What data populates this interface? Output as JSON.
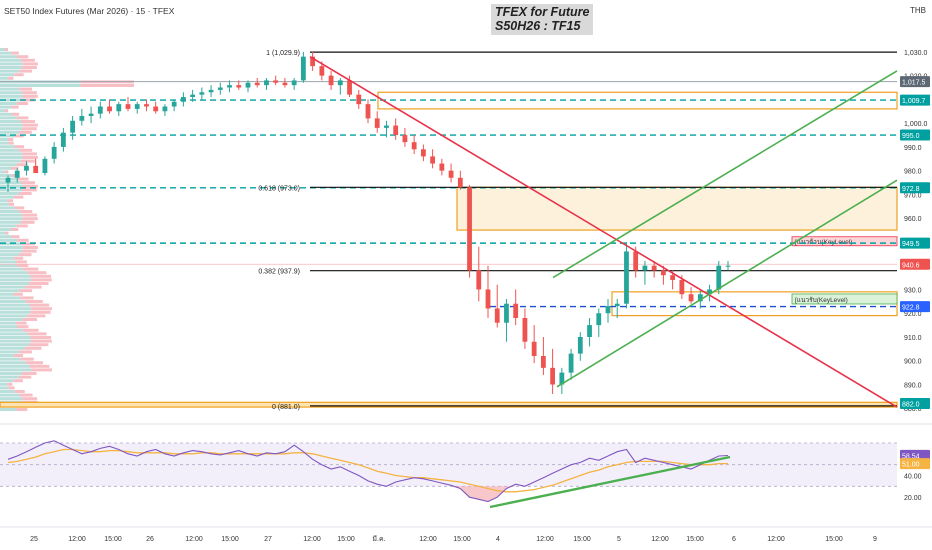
{
  "header": {
    "symbol": "SET50 Index Futures (Mar 2026) · 15 · TFEX",
    "title_line1": "TFEX for Future",
    "title_line2": "S50H26 : TF15",
    "currency": "THB"
  },
  "colors": {
    "up": "#26a69a",
    "down": "#ef5350",
    "teal": "#00a0a0",
    "orange": "#f0a020",
    "red_trend": "#e8314a",
    "green_channel": "#4caf50",
    "black": "#111111",
    "rsi_line": "#7e57c2",
    "rsi_ma": "#f5b342"
  },
  "chart_data": [
    {
      "type": "candlestick",
      "name": "price",
      "y_range": [
        878,
        1035
      ],
      "y_ticks": [
        "1,030.0",
        "1,020.0",
        "1,000.0",
        "990.0",
        "980.0",
        "970.0",
        "960.0",
        "950.0",
        "940.0",
        "930.0",
        "920.0",
        "910.0",
        "900.0",
        "890.0",
        "880.0"
      ],
      "y_tick_values": [
        1030,
        1020,
        1000,
        990,
        980,
        970,
        960,
        950,
        940,
        930,
        920,
        910,
        900,
        890,
        880
      ],
      "x_ticks": [
        "25",
        "12:00",
        "15:00",
        "26",
        "12:00",
        "15:00",
        "27",
        "12:00",
        "15:00",
        "มี.ค.",
        "12:00",
        "15:00",
        "4",
        "12:00",
        "15:00",
        "5",
        "12:00",
        "15:00",
        "6",
        "12:00",
        "15:00",
        "9"
      ],
      "candles": [
        [
          975,
          978,
          971,
          977
        ],
        [
          977,
          981,
          975,
          980
        ],
        [
          980,
          984,
          978,
          982
        ],
        [
          982,
          985,
          979,
          979
        ],
        [
          979,
          986,
          978,
          985
        ],
        [
          985,
          992,
          983,
          990
        ],
        [
          990,
          998,
          988,
          996
        ],
        [
          996,
          1003,
          993,
          1001
        ],
        [
          1001,
          1006,
          999,
          1003
        ],
        [
          1003,
          1007,
          1000,
          1004
        ],
        [
          1004,
          1009,
          1002,
          1007
        ],
        [
          1007,
          1010,
          1004,
          1005
        ],
        [
          1005,
          1009,
          1003,
          1008
        ],
        [
          1008,
          1011,
          1005,
          1006
        ],
        [
          1006,
          1009,
          1004,
          1008
        ],
        [
          1008,
          1010,
          1005,
          1007
        ],
        [
          1007,
          1009,
          1004,
          1005
        ],
        [
          1005,
          1008,
          1003,
          1007
        ],
        [
          1007,
          1010,
          1005,
          1009
        ],
        [
          1009,
          1013,
          1007,
          1011
        ],
        [
          1011,
          1014,
          1009,
          1012
        ],
        [
          1012,
          1015,
          1010,
          1013
        ],
        [
          1013,
          1016,
          1011,
          1014
        ],
        [
          1014,
          1017,
          1012,
          1015
        ],
        [
          1015,
          1018,
          1013,
          1016
        ],
        [
          1016,
          1018,
          1014,
          1015
        ],
        [
          1015,
          1018,
          1013,
          1017
        ],
        [
          1017,
          1019,
          1015,
          1016
        ],
        [
          1016,
          1019,
          1014,
          1018
        ],
        [
          1018,
          1020,
          1016,
          1017
        ],
        [
          1017,
          1019,
          1015,
          1016
        ],
        [
          1016,
          1019,
          1014,
          1018
        ],
        [
          1018,
          1030,
          1017,
          1028
        ],
        [
          1028,
          1030,
          1022,
          1024
        ],
        [
          1024,
          1026,
          1018,
          1020
        ],
        [
          1020,
          1022,
          1014,
          1016
        ],
        [
          1016,
          1019,
          1012,
          1018
        ],
        [
          1018,
          1020,
          1011,
          1012
        ],
        [
          1012,
          1014,
          1006,
          1008
        ],
        [
          1008,
          1010,
          1000,
          1002
        ],
        [
          1002,
          1005,
          996,
          998
        ],
        [
          998,
          1001,
          994,
          999
        ],
        [
          999,
          1002,
          993,
          995
        ],
        [
          995,
          998,
          990,
          992
        ],
        [
          992,
          995,
          987,
          989
        ],
        [
          989,
          991,
          984,
          986
        ],
        [
          986,
          989,
          981,
          983
        ],
        [
          983,
          985,
          978,
          980
        ],
        [
          980,
          983,
          975,
          977
        ],
        [
          977,
          980,
          972,
          973
        ],
        [
          973,
          974,
          935,
          938
        ],
        [
          938,
          948,
          925,
          930
        ],
        [
          930,
          940,
          918,
          922
        ],
        [
          922,
          932,
          914,
          916
        ],
        [
          916,
          926,
          908,
          924
        ],
        [
          924,
          930,
          915,
          918
        ],
        [
          918,
          922,
          905,
          908
        ],
        [
          908,
          915,
          899,
          902
        ],
        [
          902,
          910,
          894,
          897
        ],
        [
          897,
          905,
          886,
          890
        ],
        [
          890,
          897,
          886,
          895
        ],
        [
          895,
          905,
          892,
          903
        ],
        [
          903,
          912,
          900,
          910
        ],
        [
          910,
          918,
          906,
          915
        ],
        [
          915,
          922,
          910,
          920
        ],
        [
          920,
          926,
          916,
          923
        ],
        [
          923,
          926,
          918,
          924
        ],
        [
          924,
          950,
          922,
          946
        ],
        [
          946,
          948,
          935,
          938
        ],
        [
          938,
          942,
          932,
          940
        ],
        [
          940,
          942,
          935,
          938
        ],
        [
          938,
          940,
          932,
          936
        ],
        [
          936,
          938,
          930,
          934
        ],
        [
          934,
          936,
          926,
          928
        ],
        [
          928,
          931,
          924,
          925
        ],
        [
          925,
          930,
          922,
          928
        ],
        [
          928,
          932,
          925,
          930
        ],
        [
          930,
          942,
          928,
          940
        ],
        [
          940,
          942,
          938,
          940
        ]
      ],
      "key_levels": [
        {
          "value": 1029.9,
          "label": "1 (1,029.9)"
        },
        {
          "value": 973.0,
          "label": "0.618 (973.0)"
        },
        {
          "value": 937.9,
          "label": "0.382 (937.9)"
        },
        {
          "value": 881.0,
          "label": "0 (881.0)"
        }
      ],
      "price_tags": [
        {
          "value": 1017.5,
          "label": "1,017.5",
          "color": "#5d6875"
        },
        {
          "value": 1009.7,
          "label": "1,009.7",
          "color": "#00a0a0"
        },
        {
          "value": 995.0,
          "label": "995.0",
          "color": "#00a0a0"
        },
        {
          "value": 972.8,
          "label": "972.8",
          "color": "#00a0a0"
        },
        {
          "value": 949.5,
          "label": "949.5",
          "color": "#00a0a0"
        },
        {
          "value": 940.6,
          "label": "940.6",
          "color": "#ef5350"
        },
        {
          "value": 922.8,
          "label": "922.8",
          "color": "#2962ff"
        },
        {
          "value": 882.0,
          "label": "882.0",
          "color": "#00a0a0"
        }
      ],
      "zone_labels": {
        "resistance": "[แนวต้าน(KeyLevel)",
        "support": "[แนวรับ(KeyLevel)"
      }
    },
    {
      "type": "line",
      "name": "RSI",
      "y_ticks": [
        "60.00",
        "40.00",
        "20.00"
      ],
      "y_tick_values": [
        60,
        40,
        20
      ],
      "y_range": [
        10,
        82
      ],
      "bands": [
        70,
        30
      ],
      "tags": [
        {
          "value": 58.54,
          "label": "58.54",
          "color": "#7e57c2"
        },
        {
          "value": 51.0,
          "label": "51.00",
          "color": "#f5b342"
        }
      ],
      "rsi": [
        55,
        58,
        62,
        66,
        70,
        72,
        68,
        64,
        60,
        62,
        65,
        67,
        64,
        60,
        58,
        62,
        64,
        60,
        58,
        61,
        63,
        62,
        60,
        59,
        61,
        63,
        60,
        58,
        61,
        60,
        62,
        68,
        62,
        55,
        50,
        46,
        48,
        44,
        40,
        35,
        32,
        30,
        34,
        36,
        38,
        37,
        35,
        33,
        31,
        28,
        20,
        18,
        16,
        20,
        28,
        32,
        30,
        34,
        38,
        42,
        46,
        50,
        52,
        56,
        54,
        58,
        62,
        64,
        52,
        56,
        54,
        52,
        50,
        48,
        46,
        50,
        54,
        58,
        58.5
      ],
      "ma": [
        52,
        53,
        55,
        57,
        60,
        62,
        64,
        64,
        63,
        62,
        62,
        63,
        63,
        62,
        61,
        61,
        61,
        61,
        60,
        60,
        60,
        61,
        61,
        60,
        60,
        60,
        60,
        60,
        60,
        60,
        60,
        61,
        61,
        60,
        58,
        56,
        54,
        52,
        50,
        47,
        44,
        42,
        40,
        39,
        38,
        38,
        37,
        36,
        35,
        34,
        32,
        30,
        28,
        26,
        25,
        25,
        26,
        27,
        29,
        31,
        34,
        37,
        40,
        43,
        45,
        48,
        50,
        52,
        53,
        53,
        53,
        53,
        52,
        51,
        50,
        50,
        50,
        51,
        51
      ]
    }
  ]
}
